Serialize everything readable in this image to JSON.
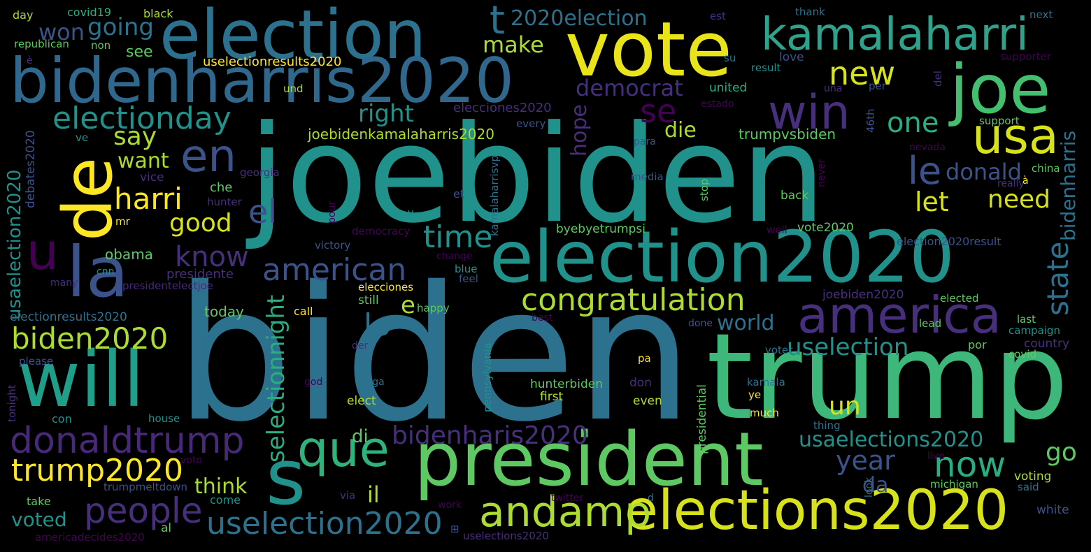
{
  "palette": {
    "background": "#000000",
    "purple": "#440154",
    "indigo": "#472f7d",
    "slate": "#3b528b",
    "blue": "#2c728e",
    "teal": "#21918c",
    "green": "#28ae80",
    "lime": "#5ec962",
    "yellowgreen": "#addc30",
    "yellow": "#fde725"
  },
  "words": [
    {
      "text": "biden"
    },
    {
      "text": "joebiden"
    },
    {
      "text": "trump"
    },
    {
      "text": "election2020"
    },
    {
      "text": "president"
    },
    {
      "text": "elections2020"
    },
    {
      "text": "election"
    },
    {
      "text": "vote"
    },
    {
      "text": "bidenharris2020"
    },
    {
      "text": "kamalaharri"
    },
    {
      "text": "joe"
    },
    {
      "text": "de"
    },
    {
      "text": "la"
    },
    {
      "text": "will"
    },
    {
      "text": "america"
    },
    {
      "text": "usa"
    },
    {
      "text": "win"
    },
    {
      "text": "s"
    },
    {
      "text": "que"
    },
    {
      "text": "en"
    },
    {
      "text": "u"
    },
    {
      "text": "donaldtrump"
    },
    {
      "text": "andamp"
    },
    {
      "text": "congratulation"
    },
    {
      "text": "electionday"
    },
    {
      "text": "american"
    },
    {
      "text": "uselection2020"
    },
    {
      "text": "people"
    },
    {
      "text": "trump2020"
    },
    {
      "text": "biden2020"
    },
    {
      "text": "new"
    },
    {
      "text": "now"
    },
    {
      "text": "t"
    },
    {
      "text": "time"
    },
    {
      "text": "el"
    },
    {
      "text": "se"
    },
    {
      "text": "le"
    },
    {
      "text": "harri"
    },
    {
      "text": "one"
    },
    {
      "text": "lo"
    },
    {
      "text": "state"
    },
    {
      "text": "selectionnight"
    },
    {
      "text": "usaelection2020"
    },
    {
      "text": "bidenharis2020"
    },
    {
      "text": "uselection"
    },
    {
      "text": "usaelections2020"
    },
    {
      "text": "2020election"
    },
    {
      "text": "year"
    },
    {
      "text": "know"
    },
    {
      "text": "won"
    },
    {
      "text": "going"
    },
    {
      "text": "make"
    },
    {
      "text": "right"
    },
    {
      "text": "democrat"
    },
    {
      "text": "donald"
    },
    {
      "text": "let"
    },
    {
      "text": "need"
    },
    {
      "text": "say"
    },
    {
      "text": "want"
    },
    {
      "text": "good"
    },
    {
      "text": "die"
    },
    {
      "text": "hope"
    },
    {
      "text": "bidenharris"
    },
    {
      "text": "un"
    },
    {
      "text": "go"
    },
    {
      "text": "world"
    },
    {
      "text": "e"
    },
    {
      "text": "think"
    },
    {
      "text": "il"
    },
    {
      "text": "di"
    },
    {
      "text": "da"
    },
    {
      "text": "voted"
    },
    {
      "text": "joebidenkamalaharris2020"
    },
    {
      "text": "see"
    },
    {
      "text": "trumpvsbiden"
    },
    {
      "text": "elecciones2020"
    },
    {
      "text": "uselectionresults2020"
    },
    {
      "text": "electionresults2020"
    },
    {
      "text": "obama"
    },
    {
      "text": "presidente"
    },
    {
      "text": "presidentelectjoe"
    },
    {
      "text": "usaelection2020"
    },
    {
      "text": "debates2020"
    },
    {
      "text": "today"
    },
    {
      "text": "che"
    },
    {
      "text": "hunter"
    },
    {
      "text": "mr"
    },
    {
      "text": "vice"
    },
    {
      "text": "georgia"
    },
    {
      "text": "byebyetrumpsi"
    },
    {
      "text": "vote2020"
    },
    {
      "text": "election2020result"
    },
    {
      "text": "kamalaharrisvp"
    },
    {
      "text": "democracy"
    },
    {
      "text": "victory"
    },
    {
      "text": "blue"
    },
    {
      "text": "feel"
    },
    {
      "text": "change"
    },
    {
      "text": "elecciones"
    },
    {
      "text": "still"
    },
    {
      "text": "happy"
    },
    {
      "text": "call"
    },
    {
      "text": "best"
    },
    {
      "text": "der"
    },
    {
      "text": "re"
    },
    {
      "text": "pa"
    },
    {
      "text": "god"
    },
    {
      "text": "maga"
    },
    {
      "text": "elect"
    },
    {
      "text": "first"
    },
    {
      "text": "don"
    },
    {
      "text": "even"
    },
    {
      "text": "hunterbiden"
    },
    {
      "text": "pennsylvania"
    },
    {
      "text": "presidential"
    },
    {
      "text": "joebiden2020"
    },
    {
      "text": "elected"
    },
    {
      "text": "lead"
    },
    {
      "text": "last"
    },
    {
      "text": "campaign"
    },
    {
      "text": "country"
    },
    {
      "text": "covid"
    },
    {
      "text": "por"
    },
    {
      "text": "voter"
    },
    {
      "text": "kamala"
    },
    {
      "text": "ye"
    },
    {
      "text": "much"
    },
    {
      "text": "thing"
    },
    {
      "text": "live"
    },
    {
      "text": "look"
    },
    {
      "text": "michigan"
    },
    {
      "text": "voting"
    },
    {
      "text": "said"
    },
    {
      "text": "white"
    },
    {
      "text": "twitter"
    },
    {
      "text": "work"
    },
    {
      "text": "d"
    },
    {
      "text": "via"
    },
    {
      "text": "come"
    },
    {
      "text": "take"
    },
    {
      "text": "con"
    },
    {
      "text": "house"
    },
    {
      "text": "voto"
    },
    {
      "text": "trumpmeltdown"
    },
    {
      "text": "al"
    },
    {
      "text": "americadecides2020"
    },
    {
      "text": "uselections2020"
    },
    {
      "text": "please"
    },
    {
      "text": "tonight"
    },
    {
      "text": "many"
    },
    {
      "text": "cnn"
    },
    {
      "text": "day"
    },
    {
      "text": "covid19"
    },
    {
      "text": "black"
    },
    {
      "text": "republican"
    },
    {
      "text": "non"
    },
    {
      "text": "thank"
    },
    {
      "text": "est"
    },
    {
      "text": "next"
    },
    {
      "text": "su"
    },
    {
      "text": "supporter"
    },
    {
      "text": "love"
    },
    {
      "text": "result"
    },
    {
      "text": "und"
    },
    {
      "text": "united"
    },
    {
      "text": "una"
    },
    {
      "text": "per"
    },
    {
      "text": "del"
    },
    {
      "text": "estado"
    },
    {
      "text": "46th"
    },
    {
      "text": "every"
    },
    {
      "text": "support"
    },
    {
      "text": "para"
    },
    {
      "text": "nevada"
    },
    {
      "text": "media"
    },
    {
      "text": "china"
    },
    {
      "text": "stop"
    },
    {
      "text": "never"
    },
    {
      "text": "really"
    },
    {
      "text": "et"
    },
    {
      "text": "back"
    },
    {
      "text": "pour"
    },
    {
      "text": "v"
    },
    {
      "text": "well"
    },
    {
      "text": "ve"
    },
    {
      "text": "done"
    },
    {
      "text": "è"
    },
    {
      "text": "à"
    },
    {
      "text": "⊞"
    }
  ]
}
